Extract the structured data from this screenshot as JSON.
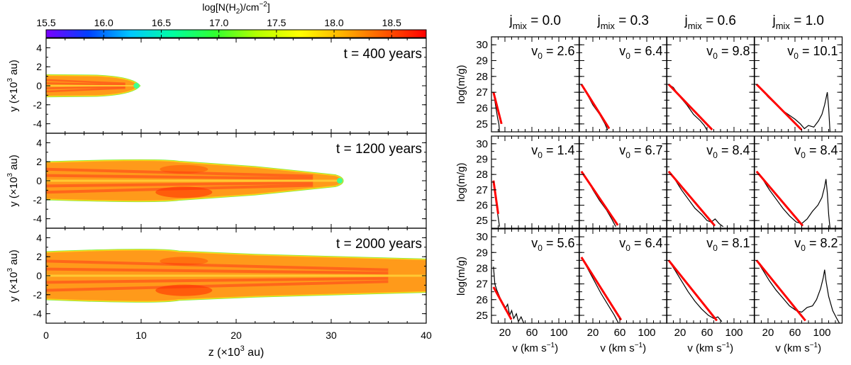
{
  "chart_data": [
    {
      "type": "heatmap",
      "panel": "column-density-maps",
      "colorbar": {
        "label": "log[N(H",
        "label_sub": "2",
        "label_tail": ")/cm",
        "label_sup": "−2",
        "label_end": "]",
        "range": [
          15.5,
          18.8
        ],
        "ticks": [
          "15.5",
          "16.0",
          "16.5",
          "17.0",
          "17.5",
          "18.0",
          "18.5"
        ],
        "tick_values": [
          15.5,
          16.0,
          16.5,
          17.0,
          17.5,
          18.0,
          18.5
        ],
        "colors": [
          "#7a00ff",
          "#0040ff",
          "#00c8ff",
          "#00ffa0",
          "#30ff30",
          "#b4ff00",
          "#ffff00",
          "#ffb400",
          "#ff5a00",
          "#ff0000"
        ]
      },
      "xlabel": "z (×10",
      "xlabel_sup": "3",
      "xlabel_tail": " au)",
      "ylabel": "y (×10",
      "ylabel_sup": "3",
      "ylabel_tail": " au)",
      "xlim": [
        0,
        40
      ],
      "ylim": [
        -5,
        5
      ],
      "xticks": [
        "0",
        "10",
        "20",
        "30",
        "40"
      ],
      "xtick_values": [
        0,
        10,
        20,
        30,
        40
      ],
      "yticks": [
        "4",
        "2",
        "0",
        "-2",
        "-4"
      ],
      "ytick_values": [
        4,
        2,
        0,
        -2,
        -4
      ],
      "snapshots": [
        {
          "label": "t = 400 years",
          "jet_tip_z": 9.8,
          "max_half_width": 1.1
        },
        {
          "label": "t = 1200 years",
          "jet_tip_z": 31.2,
          "max_half_width": 2.2
        },
        {
          "label": "t = 2000 years",
          "jet_tip_z": 40.0,
          "max_half_width": 2.8
        }
      ]
    },
    {
      "type": "line",
      "panel": "mass-velocity-spectra",
      "column_prefix": "j",
      "column_sub": "mix",
      "column_values": [
        "0.0",
        "0.3",
        "0.6",
        "1.0"
      ],
      "ylabel": "log(m/g)",
      "xlabel": "v (km s",
      "xlabel_sup": "−1",
      "xlabel_tail": ")",
      "xlim": [
        0,
        130
      ],
      "ylim": [
        24.5,
        30.5
      ],
      "yticks": [
        "30",
        "29",
        "28",
        "27",
        "26",
        "25"
      ],
      "ytick_values": [
        30,
        29,
        28,
        27,
        26,
        25
      ],
      "xticks": [
        "20",
        "60",
        "100"
      ],
      "xtick_values": [
        20,
        60,
        100
      ],
      "v0_prefix": "v",
      "v0_sub": "0",
      "v0_labels": [
        [
          "2.6",
          "6.4",
          "9.8",
          "10.1"
        ],
        [
          "1.4",
          "6.7",
          "8.4",
          "8.4"
        ],
        [
          "5.6",
          "6.4",
          "8.1",
          "8.2"
        ]
      ],
      "fits": [
        [
          {
            "a": 27.0,
            "v0": 2.6
          },
          {
            "a": 27.5,
            "v0": 6.4
          },
          {
            "a": 27.5,
            "v0": 9.8
          },
          {
            "a": 27.5,
            "v0": 10.1
          }
        ],
        [
          {
            "a": 27.6,
            "v0": 1.4
          },
          {
            "a": 28.2,
            "v0": 6.7
          },
          {
            "a": 28.2,
            "v0": 8.4
          },
          {
            "a": 28.2,
            "v0": 8.4
          }
        ],
        [
          {
            "a": 26.8,
            "v0": 5.6
          },
          {
            "a": 28.7,
            "v0": 6.4
          },
          {
            "a": 28.5,
            "v0": 8.1
          },
          {
            "a": 28.5,
            "v0": 8.2
          }
        ]
      ],
      "spectra": [
        [
          [
            [
              3,
              27.0
            ],
            [
              6,
              26.2
            ],
            [
              9,
              25.4
            ],
            [
              11,
              25.0
            ],
            [
              12,
              24.5
            ]
          ],
          [
            [
              3,
              27.5
            ],
            [
              10,
              27.0
            ],
            [
              20,
              26.2
            ],
            [
              30,
              25.6
            ],
            [
              38,
              25.0
            ],
            [
              42,
              24.6
            ]
          ],
          [
            [
              3,
              27.5
            ],
            [
              10,
              27.3
            ],
            [
              20,
              26.7
            ],
            [
              30,
              26.2
            ],
            [
              40,
              25.6
            ],
            [
              50,
              25.2
            ],
            [
              56,
              24.9
            ],
            [
              60,
              24.6
            ]
          ],
          [
            [
              3,
              27.5
            ],
            [
              10,
              27.2
            ],
            [
              20,
              26.7
            ],
            [
              30,
              26.3
            ],
            [
              40,
              25.9
            ],
            [
              50,
              25.6
            ],
            [
              60,
              25.3
            ],
            [
              68,
              25.0
            ],
            [
              74,
              24.7
            ],
            [
              80,
              24.9
            ],
            [
              88,
              24.8
            ],
            [
              95,
              25.2
            ],
            [
              100,
              25.6
            ],
            [
              104,
              26.2
            ],
            [
              108,
              27.0
            ],
            [
              110,
              26.0
            ],
            [
              112,
              24.5
            ]
          ]
        ],
        [
          [
            [
              3,
              27.6
            ],
            [
              5,
              26.8
            ],
            [
              8,
              25.8
            ],
            [
              10,
              25.2
            ],
            [
              12,
              24.6
            ]
          ],
          [
            [
              3,
              28.2
            ],
            [
              10,
              27.8
            ],
            [
              20,
              27.0
            ],
            [
              30,
              26.3
            ],
            [
              40,
              25.7
            ],
            [
              48,
              25.1
            ],
            [
              54,
              24.6
            ]
          ],
          [
            [
              3,
              28.2
            ],
            [
              12,
              27.7
            ],
            [
              22,
              27.0
            ],
            [
              32,
              26.4
            ],
            [
              42,
              25.8
            ],
            [
              52,
              25.4
            ],
            [
              60,
              25.0
            ],
            [
              66,
              24.9
            ],
            [
              72,
              25.1
            ],
            [
              78,
              24.8
            ],
            [
              84,
              24.6
            ]
          ],
          [
            [
              3,
              28.2
            ],
            [
              12,
              27.7
            ],
            [
              22,
              27.0
            ],
            [
              32,
              26.4
            ],
            [
              42,
              25.8
            ],
            [
              52,
              25.3
            ],
            [
              62,
              24.9
            ],
            [
              70,
              24.8
            ],
            [
              78,
              25.1
            ],
            [
              86,
              25.6
            ],
            [
              94,
              26.0
            ],
            [
              100,
              26.5
            ],
            [
              104,
              27.2
            ],
            [
              106,
              27.7
            ],
            [
              108,
              26.8
            ],
            [
              110,
              25.4
            ],
            [
              112,
              24.5
            ]
          ]
        ],
        [
          [
            [
              3,
              28.1
            ],
            [
              5,
              27.0
            ],
            [
              8,
              26.6
            ],
            [
              12,
              26.2
            ],
            [
              16,
              25.8
            ],
            [
              20,
              25.4
            ],
            [
              24,
              25.7
            ],
            [
              27,
              25.0
            ],
            [
              30,
              25.3
            ],
            [
              33,
              24.8
            ],
            [
              37,
              25.1
            ],
            [
              40,
              24.6
            ],
            [
              44,
              24.9
            ],
            [
              48,
              24.5
            ]
          ],
          [
            [
              3,
              28.7
            ],
            [
              12,
              28.0
            ],
            [
              22,
              27.2
            ],
            [
              32,
              26.4
            ],
            [
              42,
              25.7
            ],
            [
              52,
              25.0
            ],
            [
              58,
              24.5
            ]
          ],
          [
            [
              3,
              28.5
            ],
            [
              12,
              27.9
            ],
            [
              22,
              27.2
            ],
            [
              32,
              26.5
            ],
            [
              42,
              25.9
            ],
            [
              52,
              25.4
            ],
            [
              62,
              25.0
            ],
            [
              70,
              24.8
            ],
            [
              76,
              24.9
            ],
            [
              82,
              24.6
            ]
          ],
          [
            [
              3,
              28.5
            ],
            [
              12,
              27.9
            ],
            [
              22,
              27.2
            ],
            [
              32,
              26.6
            ],
            [
              42,
              26.1
            ],
            [
              52,
              25.6
            ],
            [
              62,
              25.3
            ],
            [
              70,
              25.2
            ],
            [
              78,
              25.5
            ],
            [
              86,
              25.6
            ],
            [
              92,
              26.0
            ],
            [
              98,
              26.7
            ],
            [
              102,
              27.4
            ],
            [
              104,
              27.9
            ],
            [
              106,
              27.2
            ],
            [
              110,
              26.2
            ],
            [
              116,
              25.3
            ],
            [
              122,
              24.8
            ],
            [
              126,
              24.5
            ]
          ]
        ]
      ],
      "spectrum_color": "#000000",
      "fit_color": "#ff0000"
    }
  ]
}
